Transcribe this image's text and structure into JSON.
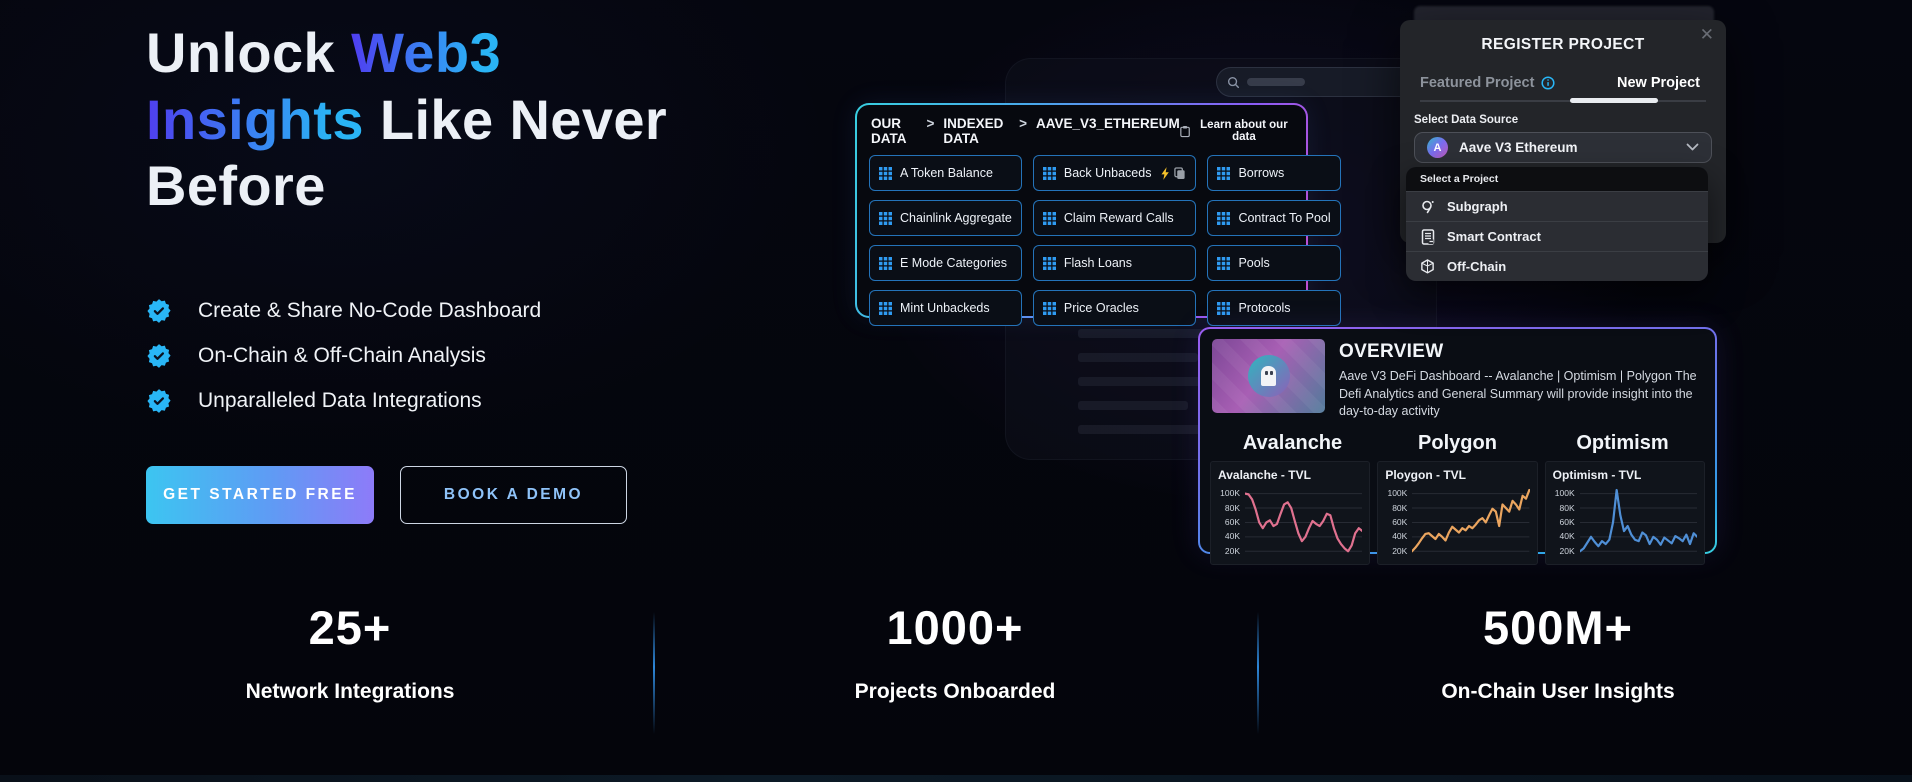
{
  "hero": {
    "title_l1a": "Unlock ",
    "title_l1b": "Web3",
    "title_l2a": "Insights",
    "title_l2b": " Like Never",
    "title_l3": "Before",
    "bullets": [
      "Create & Share No-Code Dashboard",
      "On-Chain & Off-Chain Analysis",
      "Unparalleled Data Integrations"
    ],
    "cta_primary": "GET STARTED FREE",
    "cta_secondary": "BOOK A DEMO"
  },
  "data_panel": {
    "breadcrumb": [
      "OUR DATA",
      "INDEXED DATA",
      "AAVE_V3_ETHEREUM"
    ],
    "separator": ">",
    "learn_link": "Learn about our data",
    "tiles": [
      "A Token Balance",
      "Back Unbaceds",
      "Borrows",
      "Chainlink Aggregate",
      "Claim Reward Calls",
      "Contract To Pool",
      "E Mode Categories",
      "Flash Loans",
      "Pools",
      "Mint Unbackeds",
      "Price Oracles",
      "Protocols"
    ]
  },
  "register_modal": {
    "title": "REGISTER PROJECT",
    "close": "✕",
    "tab_featured": "Featured Project",
    "tab_new": "New Project",
    "data_source_label": "Select Data Source",
    "data_source_value": "Aave V3 Ethereum",
    "aave_initial": "A",
    "dropdown_header": "Select a Project",
    "options": [
      "Subgraph",
      "Smart Contract",
      "Off-Chain"
    ]
  },
  "overview": {
    "title": "OVERVIEW",
    "description": "Aave V3 DeFi Dashboard -- Avalanche | Optimism | Polygon The Defi Analytics and General Summary will provide insight into the day-to-day activity",
    "chains": [
      "Avalanche",
      "Polygon",
      "Optimism"
    ]
  },
  "chart_data": [
    {
      "type": "line",
      "title": "Avalanche - TVL",
      "color": "#e0718f",
      "yticks": [
        "100K",
        "80K",
        "60K",
        "40K",
        "20K"
      ],
      "ylim": [
        12,
        112
      ],
      "grid": true,
      "values": [
        100,
        99,
        92,
        78,
        60,
        52,
        60,
        63,
        55,
        58,
        72,
        85,
        88,
        80,
        62,
        45,
        34,
        40,
        52,
        62,
        58,
        55,
        62,
        72,
        70,
        52,
        38,
        30,
        24,
        20,
        28,
        45,
        52,
        48
      ]
    },
    {
      "type": "line",
      "title": "Ploygon - TVL",
      "color": "#eba55f",
      "yticks": [
        "100K",
        "80K",
        "60K",
        "40K",
        "20K"
      ],
      "ylim": [
        12,
        112
      ],
      "grid": true,
      "values": [
        20,
        25,
        31,
        38,
        44,
        45,
        41,
        37,
        44,
        40,
        35,
        46,
        54,
        50,
        46,
        52,
        49,
        55,
        52,
        57,
        63,
        66,
        60,
        70,
        79,
        75,
        55,
        85,
        80,
        75,
        90,
        85,
        78,
        97,
        93,
        105
      ]
    },
    {
      "type": "line",
      "title": "Optimism - TVL",
      "color": "#4f8fd6",
      "yticks": [
        "100K",
        "80K",
        "60K",
        "40K",
        "20K"
      ],
      "ylim": [
        12,
        112
      ],
      "grid": true,
      "values": [
        20,
        24,
        32,
        40,
        33,
        27,
        34,
        30,
        36,
        60,
        105,
        70,
        48,
        55,
        43,
        36,
        34,
        46,
        42,
        30,
        40,
        36,
        29,
        39,
        35,
        31,
        41,
        38,
        34,
        43,
        30,
        45,
        40
      ]
    }
  ],
  "stats": [
    {
      "value": "25+",
      "label": "Network Integrations"
    },
    {
      "value": "1000+",
      "label": "Projects Onboarded"
    },
    {
      "value": "500M+",
      "label": "On-Chain User Insights"
    }
  ],
  "colors": {
    "accent_cyan": "#29b6f6",
    "accent_purple": "#8b5cf6",
    "tile_border": "#2d96f0",
    "cta_gradient_start": "#3cc5f1",
    "cta_gradient_end": "#8d7bf8",
    "stat_divider": "#2d86d8"
  }
}
